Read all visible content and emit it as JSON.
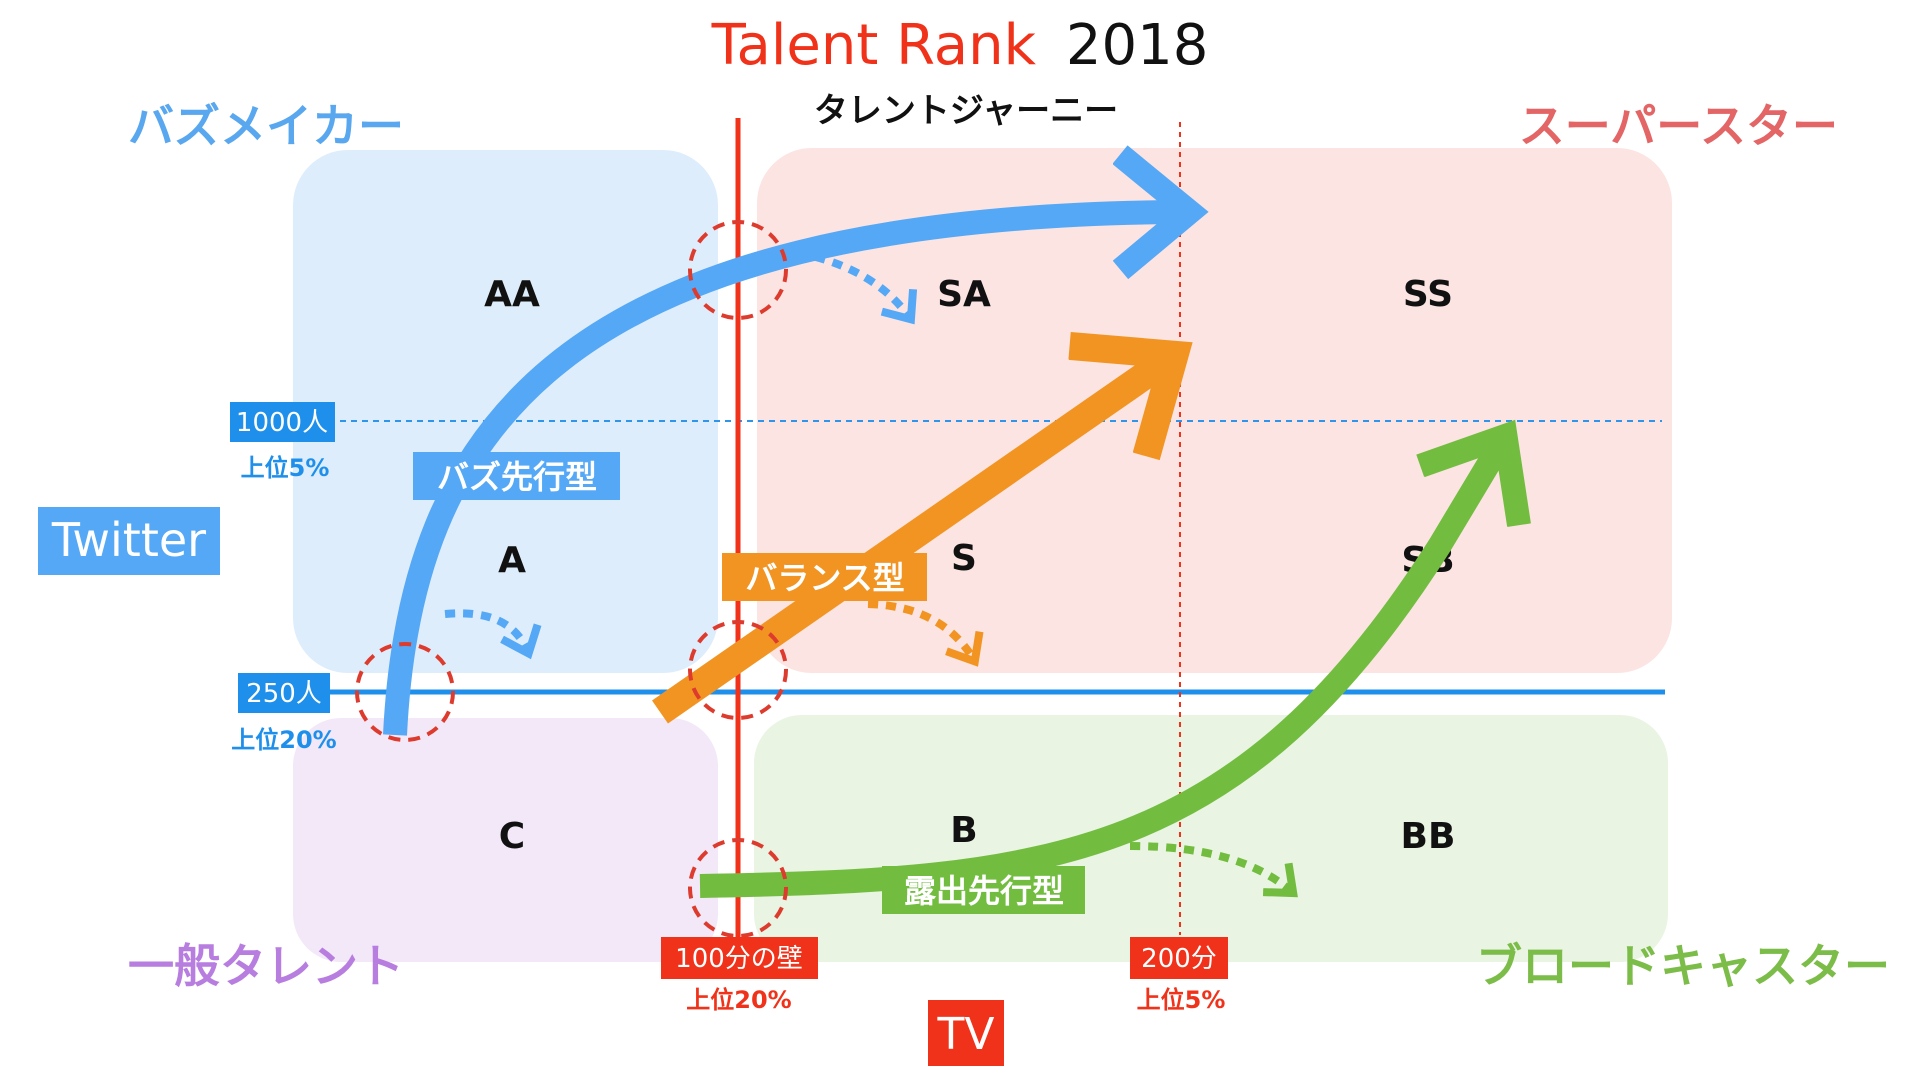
{
  "title": {
    "main": "Talent Rank",
    "year": "2018",
    "subtitle": "タレントジャーニー"
  },
  "quadrants": {
    "buzz_maker": "バズメイカー",
    "superstar": "スーパースター",
    "general_talent": "一般タレント",
    "broadcaster": "ブロードキャスター"
  },
  "cells": {
    "AA": "AA",
    "A": "A",
    "C": "C",
    "SA": "SA",
    "S": "S",
    "B": "B",
    "SS": "SS",
    "SB": "SB",
    "BB": "BB"
  },
  "y_axis": {
    "label": "Twitter",
    "high_threshold": "1000人",
    "high_pct": "上位5%",
    "low_threshold": "250人",
    "low_pct": "上位20%"
  },
  "x_axis": {
    "label": "TV",
    "wall": "100分の壁",
    "wall_pct": "上位20%",
    "high_threshold": "200分",
    "high_pct": "上位5%"
  },
  "paths": {
    "buzz_first": "バズ先行型",
    "balance": "バランス型",
    "exposure_first": "露出先行型"
  },
  "colors": {
    "blue": "#55a8f5",
    "orange": "#f29422",
    "green": "#72bd3f",
    "red": "#f0321a",
    "buzz_box": "#deedfb",
    "star_box": "#fbe4e2",
    "general_box": "#f3e8f8",
    "broad_box": "#e9f4e3",
    "buzz_label": "#59a7ef",
    "star_label": "#e36565",
    "general_label": "#b77ee0",
    "broad_label": "#7cbd4a"
  }
}
